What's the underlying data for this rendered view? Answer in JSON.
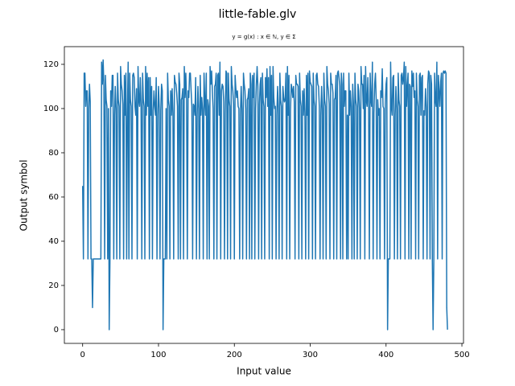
{
  "chart_data": {
    "type": "line",
    "title": "little-fable.glv",
    "subtitle": "y = g(x) : x ∈ ℕ, y ∈ Σ",
    "xlabel": "Input value",
    "ylabel": "Output symbol",
    "xlim": [
      -24.1,
      502.1
    ],
    "ylim": [
      -6.2,
      128
    ],
    "xticks": [
      0,
      100,
      200,
      300,
      400,
      500
    ],
    "yticks": [
      0,
      20,
      40,
      60,
      80,
      100,
      120
    ],
    "color": "#1f77b4",
    "x": [
      0,
      1,
      2,
      3,
      4,
      5,
      6,
      7,
      8,
      9,
      10,
      11,
      12,
      13,
      14,
      15,
      16,
      17,
      18,
      19,
      20,
      21,
      22,
      23,
      24,
      25,
      26,
      27,
      28,
      29,
      30,
      31,
      32,
      33,
      34,
      35,
      36,
      37,
      38,
      39,
      40,
      41,
      42,
      43,
      44,
      45,
      46,
      47,
      48,
      49,
      50,
      51,
      52,
      53,
      54,
      55,
      56,
      57,
      58,
      59,
      60,
      61,
      62,
      63,
      64,
      65,
      66,
      67,
      68,
      69,
      70,
      71,
      72,
      73,
      74,
      75,
      76,
      77,
      78,
      79,
      80,
      81,
      82,
      83,
      84,
      85,
      86,
      87,
      88,
      89,
      90,
      91,
      92,
      93,
      94,
      95,
      96,
      97,
      98,
      99,
      100,
      101,
      102,
      103,
      104,
      105,
      106,
      107,
      108,
      109,
      110,
      111,
      112,
      113,
      114,
      115,
      116,
      117,
      118,
      119,
      120,
      121,
      122,
      123,
      124,
      125,
      126,
      127,
      128,
      129,
      130,
      131,
      132,
      133,
      134,
      135,
      136,
      137,
      138,
      139,
      140,
      141,
      142,
      143,
      144,
      145,
      146,
      147,
      148,
      149,
      150,
      151,
      152,
      153,
      154,
      155,
      156,
      157,
      158,
      159,
      160,
      161,
      162,
      163,
      164,
      165,
      166,
      167,
      168,
      169,
      170,
      171,
      172,
      173,
      174,
      175,
      176,
      177,
      178,
      179,
      180,
      181,
      182,
      183,
      184,
      185,
      186,
      187,
      188,
      189,
      190,
      191,
      192,
      193,
      194,
      195,
      196,
      197,
      198,
      199,
      200,
      201,
      202,
      203,
      204,
      205,
      206,
      207,
      208,
      209,
      210,
      211,
      212,
      213,
      214,
      215,
      216,
      217,
      218,
      219,
      220,
      221,
      222,
      223,
      224,
      225,
      226,
      227,
      228,
      229,
      230,
      231,
      232,
      233,
      234,
      235,
      236,
      237,
      238,
      239,
      240,
      241,
      242,
      243,
      244,
      245,
      246,
      247,
      248,
      249,
      250,
      251,
      252,
      253,
      254,
      255,
      256,
      257,
      258,
      259,
      260,
      261,
      262,
      263,
      264,
      265,
      266,
      267,
      268,
      269,
      270,
      271,
      272,
      273,
      274,
      275,
      276,
      277,
      278,
      279,
      280,
      281,
      282,
      283,
      284,
      285,
      286,
      287,
      288,
      289,
      290,
      291,
      292,
      293,
      294,
      295,
      296,
      297,
      298,
      299,
      300,
      301,
      302,
      303,
      304,
      305,
      306,
      307,
      308,
      309,
      310,
      311,
      312,
      313,
      314,
      315,
      316,
      317,
      318,
      319,
      320,
      321,
      322,
      323,
      324,
      325,
      326,
      327,
      328,
      329,
      330,
      331,
      332,
      333,
      334,
      335,
      336,
      337,
      338,
      339,
      340,
      341,
      342,
      343,
      344,
      345,
      346,
      347,
      348,
      349,
      350,
      351,
      352,
      353,
      354,
      355,
      356,
      357,
      358,
      359,
      360,
      361,
      362,
      363,
      364,
      365,
      366,
      367,
      368,
      369,
      370,
      371,
      372,
      373,
      374,
      375,
      376,
      377,
      378,
      379,
      380,
      381,
      382,
      383,
      384,
      385,
      386,
      387,
      388,
      389,
      390,
      391,
      392,
      393,
      394,
      395,
      396,
      397,
      398,
      399,
      400,
      401,
      402,
      403,
      404,
      405,
      406,
      407,
      408,
      409,
      410,
      411,
      412,
      413,
      414,
      415,
      416,
      417,
      418,
      419,
      420,
      421,
      422,
      423,
      424,
      425,
      426,
      427,
      428,
      429,
      430,
      431,
      432,
      433,
      434,
      435,
      436,
      437,
      438,
      439,
      440,
      441,
      442,
      443,
      444,
      445,
      446,
      447,
      448,
      449,
      450,
      451,
      452,
      453,
      454,
      455,
      456,
      457,
      458,
      459,
      460,
      461,
      462,
      463,
      464,
      465,
      466,
      467,
      468,
      469,
      470,
      471,
      472,
      473,
      474,
      475,
      476,
      477,
      478,
      479,
      480,
      481
    ],
    "values": [
      65,
      32,
      116,
      116,
      101,
      108,
      108,
      32,
      100,
      111,
      103,
      32,
      32,
      10,
      32,
      32,
      32,
      32,
      32,
      32,
      32,
      32,
      32,
      32,
      32,
      121,
      111,
      122,
      110,
      32,
      115,
      104,
      101,
      32,
      100,
      0,
      32,
      108,
      101,
      115,
      115,
      32,
      97,
      110,
      100,
      32,
      116,
      104,
      101,
      32,
      119,
      111,
      108,
      102,
      32,
      115,
      97,
      116,
      32,
      98,
      121,
      32,
      116,
      104,
      101,
      32,
      115,
      116,
      114,
      101,
      97,
      109,
      32,
      119,
      104,
      101,
      114,
      101,
      32,
      116,
      104,
      101,
      32,
      119,
      97,
      116,
      101,
      114,
      32,
      114,
      97,
      110,
      32,
      99,
      108,
      101,
      97,
      114,
      32,
      97,
      110,
      100,
      32,
      99,
      111,
      108,
      0,
      32,
      32,
      32,
      100,
      32,
      116,
      104,
      101,
      32,
      108,
      97,
      109,
      98,
      32,
      115,
      112,
      111,
      107,
      101,
      32,
      116,
      111,
      32,
      104,
      105,
      109,
      32,
      119,
      105,
      116,
      104,
      32,
      108,
      105,
      116,
      116,
      108,
      101,
      32,
      102,
      101,
      97,
      114,
      32,
      97,
      110,
      100,
      32,
      115,
      97,
      105,
      100,
      32,
      116,
      104,
      97,
      116,
      32,
      104,
      101,
      32,
      119,
      111,
      117,
      108,
      100,
      32,
      110,
      111,
      116,
      32,
      115,
      116,
      97,
      121,
      32,
      108,
      111,
      110,
      103,
      32,
      98,
      117,
      116,
      32,
      116,
      104,
      101,
      32,
      119,
      111,
      108,
      102,
      32,
      115,
      109,
      105,
      108,
      101,
      100,
      32,
      97,
      110,
      100,
      32,
      116,
      111,
      108,
      100,
      32,
      104,
      105,
      109,
      32,
      116,
      111,
      32,
      115,
      105,
      116,
      32,
      100,
      111,
      119,
      110,
      32,
      102,
      111,
      114,
      32,
      116,
      104,
      101,
      32,
      114,
      105,
      118,
      101,
      114,
      32,
      119,
      97,
      115,
      32,
      119,
      105,
      100,
      101,
      32,
      97,
      110,
      100,
      32,
      116,
      104,
      101,
      32,
      110,
      105,
      103,
      104,
      116,
      32,
      119,
      97,
      115,
      32,
      99,
      111,
      109,
      105,
      110,
      103,
      32,
      115,
      111,
      111,
      110,
      32,
      116,
      104,
      101,
      32,
      108,
      97,
      109,
      98,
      32,
      115,
      97,
      116,
      32,
      117,
      112,
      111,
      110,
      32,
      116,
      104,
      101,
      32,
      115,
      116,
      111,
      110,
      101,
      32,
      97,
      110,
      100,
      32,
      116,
      104,
      101,
      32,
      119,
      111,
      108,
      102,
      32,
      116,
      111,
      111,
      107,
      32,
      104,
      105,
      115,
      32,
      116,
      117,
      114,
      110,
      32,
      116,
      111,
      32,
      116,
      101,
      108,
      108,
      32,
      97,
      32,
      116,
      97,
      108,
      101,
      32,
      111,
      102,
      32,
      116,
      104,
      101,
      32,
      111,
      108,
      100,
      32,
      119,
      111,
      111,
      100,
      115,
      32,
      119,
      104,
      101,
      114,
      101,
      32,
      116,
      104,
      101,
      121,
      32,
      98,
      111,
      116,
      104,
      32,
      104,
      97,
      100,
      32,
      108,
      105,
      118,
      101,
      100,
      32,
      102,
      111,
      114,
      0,
      32,
      32,
      32,
      121,
      101,
      97,
      114,
      115,
      32,
      97,
      110,
      100,
      32,
      116,
      104,
      101,
      32,
      115,
      116,
      111,
      114,
      121,
      32,
      119,
      101,
      110,
      116,
      32,
      111,
      110,
      32,
      117,
      110,
      116,
      105,
      108,
      32,
      116,
      104,
      101,
      32,
      115,
      116,
      97,
      114,
      115,
      32,
      99,
      97,
      109,
      101,
      32,
      111,
      117,
      116,
      32,
      115,
      111,
      32,
      0,
      32,
      116,
      104,
      101,
      121,
      32,
      115,
      108,
      101,
      112,
      116,
      32,
      116,
      117,
      116,
      117,
      116,
      10,
      0
    ]
  }
}
